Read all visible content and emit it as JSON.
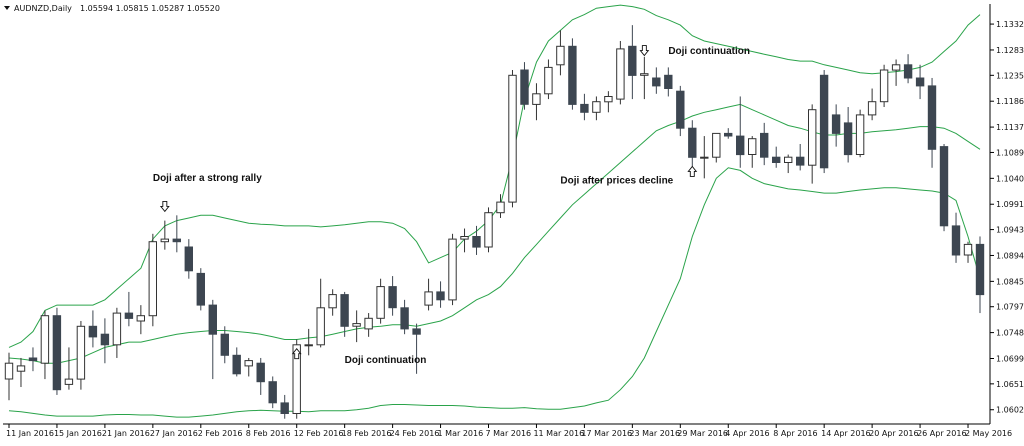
{
  "header": {
    "symbol": "AUDNZD,Daily",
    "ohlc": "1.05594 1.05815 1.05287 1.05520"
  },
  "colors": {
    "bear": "#3d4651",
    "bull_fill": "#ffffff",
    "bull_stroke": "#333333",
    "band": "#2aa34a",
    "axis": "#000000"
  },
  "annotations": [
    {
      "text": "Doji after a strong rally",
      "x": "2016-01-27",
      "y": 1.1035,
      "arrow": "down",
      "arrow_x": "2016-01-28",
      "arrow_y": 1.0985
    },
    {
      "text": "Doji continuation",
      "x": "2016-02-18",
      "y": 1.069,
      "arrow": "up",
      "arrow_x": "2016-02-12",
      "arrow_y": 1.071
    },
    {
      "text": "Doji continuation",
      "x": "2016-03-28",
      "y": 1.1275,
      "arrow": "down",
      "arrow_x": "2016-03-24",
      "arrow_y": 1.128
    },
    {
      "text": "Doji after prices decline",
      "x": "2016-03-15",
      "y": 1.103,
      "arrow": "up",
      "arrow_x": "2016-03-30",
      "arrow_y": 1.1055
    }
  ],
  "chart_data": {
    "type": "candlestick",
    "title": "AUDNZD,Daily",
    "y_ticks": [
      1.1332,
      1.1283,
      1.1235,
      1.1186,
      1.1137,
      1.1089,
      1.104,
      1.0991,
      1.0943,
      1.0894,
      1.0845,
      1.0797,
      1.0748,
      1.0699,
      1.0651,
      1.0602
    ],
    "ylim": [
      1.0575,
      1.137
    ],
    "x_tick_labels": [
      "11 Jan 2016",
      "15 Jan 2016",
      "21 Jan 2016",
      "27 Jan 2016",
      "2 Feb 2016",
      "8 Feb 2016",
      "12 Feb 2016",
      "18 Feb 2016",
      "24 Feb 2016",
      "1 Mar 2016",
      "7 Mar 2016",
      "11 Mar 2016",
      "17 Mar 2016",
      "23 Mar 2016",
      "29 Mar 2016",
      "4 Apr 2016",
      "8 Apr 2016",
      "14 Apr 2016",
      "20 Apr 2016",
      "26 Apr 2016",
      "2 May 2016"
    ],
    "x_tick_dates": [
      "2016-01-11",
      "2016-01-15",
      "2016-01-21",
      "2016-01-27",
      "2016-02-02",
      "2016-02-08",
      "2016-02-12",
      "2016-02-18",
      "2016-02-24",
      "2016-03-01",
      "2016-03-07",
      "2016-03-11",
      "2016-03-17",
      "2016-03-23",
      "2016-03-29",
      "2016-04-04",
      "2016-04-08",
      "2016-04-14",
      "2016-04-20",
      "2016-04-26",
      "2016-05-02"
    ],
    "candles": [
      {
        "date": "2016-01-11",
        "o": 1.066,
        "h": 1.071,
        "l": 1.062,
        "c": 1.069
      },
      {
        "date": "2016-01-12",
        "o": 1.0675,
        "h": 1.07,
        "l": 1.0645,
        "c": 1.0685
      },
      {
        "date": "2016-01-13",
        "o": 1.07,
        "h": 1.072,
        "l": 1.0675,
        "c": 1.0695
      },
      {
        "date": "2016-01-14",
        "o": 1.069,
        "h": 1.079,
        "l": 1.066,
        "c": 1.078
      },
      {
        "date": "2016-01-15",
        "o": 1.078,
        "h": 1.0795,
        "l": 1.063,
        "c": 1.064
      },
      {
        "date": "2016-01-18",
        "o": 1.065,
        "h": 1.072,
        "l": 1.064,
        "c": 1.066
      },
      {
        "date": "2016-01-19",
        "o": 1.066,
        "h": 1.077,
        "l": 1.064,
        "c": 1.076
      },
      {
        "date": "2016-01-20",
        "o": 1.076,
        "h": 1.079,
        "l": 1.072,
        "c": 1.074
      },
      {
        "date": "2016-01-21",
        "o": 1.0745,
        "h": 1.0775,
        "l": 1.069,
        "c": 1.0725
      },
      {
        "date": "2016-01-22",
        "o": 1.0725,
        "h": 1.0795,
        "l": 1.07,
        "c": 1.0785
      },
      {
        "date": "2016-01-25",
        "o": 1.0785,
        "h": 1.0825,
        "l": 1.076,
        "c": 1.0775
      },
      {
        "date": "2016-01-26",
        "o": 1.077,
        "h": 1.08,
        "l": 1.0745,
        "c": 1.078
      },
      {
        "date": "2016-01-27",
        "o": 1.078,
        "h": 1.0935,
        "l": 1.076,
        "c": 1.092
      },
      {
        "date": "2016-01-28",
        "o": 1.092,
        "h": 1.096,
        "l": 1.0905,
        "c": 1.0925
      },
      {
        "date": "2016-01-29",
        "o": 1.0925,
        "h": 1.097,
        "l": 1.09,
        "c": 1.092
      },
      {
        "date": "2016-02-01",
        "o": 1.091,
        "h": 1.0925,
        "l": 1.085,
        "c": 1.0865
      },
      {
        "date": "2016-02-02",
        "o": 1.086,
        "h": 1.087,
        "l": 1.079,
        "c": 1.08
      },
      {
        "date": "2016-02-03",
        "o": 1.08,
        "h": 1.081,
        "l": 1.066,
        "c": 1.0745
      },
      {
        "date": "2016-02-04",
        "o": 1.0745,
        "h": 1.076,
        "l": 1.069,
        "c": 1.0705
      },
      {
        "date": "2016-02-05",
        "o": 1.0705,
        "h": 1.072,
        "l": 1.0665,
        "c": 1.067
      },
      {
        "date": "2016-02-08",
        "o": 1.0685,
        "h": 1.07,
        "l": 1.0665,
        "c": 1.0695
      },
      {
        "date": "2016-02-09",
        "o": 1.069,
        "h": 1.07,
        "l": 1.063,
        "c": 1.0655
      },
      {
        "date": "2016-02-10",
        "o": 1.0655,
        "h": 1.0665,
        "l": 1.0605,
        "c": 1.0615
      },
      {
        "date": "2016-02-11",
        "o": 1.0615,
        "h": 1.063,
        "l": 1.0585,
        "c": 1.0595
      },
      {
        "date": "2016-02-12",
        "o": 1.0595,
        "h": 1.0735,
        "l": 1.0585,
        "c": 1.0725
      },
      {
        "date": "2016-02-15",
        "o": 1.0725,
        "h": 1.0755,
        "l": 1.0705,
        "c": 1.0725
      },
      {
        "date": "2016-02-16",
        "o": 1.0725,
        "h": 1.085,
        "l": 1.072,
        "c": 1.0795
      },
      {
        "date": "2016-02-17",
        "o": 1.0795,
        "h": 1.083,
        "l": 1.078,
        "c": 1.082
      },
      {
        "date": "2016-02-18",
        "o": 1.082,
        "h": 1.0825,
        "l": 1.074,
        "c": 1.076
      },
      {
        "date": "2016-02-19",
        "o": 1.076,
        "h": 1.079,
        "l": 1.073,
        "c": 1.0765
      },
      {
        "date": "2016-02-22",
        "o": 1.0755,
        "h": 1.0785,
        "l": 1.074,
        "c": 1.0775
      },
      {
        "date": "2016-02-23",
        "o": 1.0775,
        "h": 1.085,
        "l": 1.0765,
        "c": 1.0835
      },
      {
        "date": "2016-02-24",
        "o": 1.0835,
        "h": 1.0855,
        "l": 1.078,
        "c": 1.0795
      },
      {
        "date": "2016-02-25",
        "o": 1.0795,
        "h": 1.081,
        "l": 1.0745,
        "c": 1.0755
      },
      {
        "date": "2016-02-26",
        "o": 1.0755,
        "h": 1.0765,
        "l": 1.067,
        "c": 1.0745
      },
      {
        "date": "2016-02-29",
        "o": 1.08,
        "h": 1.085,
        "l": 1.079,
        "c": 1.0825
      },
      {
        "date": "2016-03-01",
        "o": 1.0825,
        "h": 1.0845,
        "l": 1.0795,
        "c": 1.081
      },
      {
        "date": "2016-03-02",
        "o": 1.081,
        "h": 1.0935,
        "l": 1.08,
        "c": 1.0925
      },
      {
        "date": "2016-03-03",
        "o": 1.0925,
        "h": 1.0945,
        "l": 1.09,
        "c": 1.093
      },
      {
        "date": "2016-03-04",
        "o": 1.093,
        "h": 1.095,
        "l": 1.0895,
        "c": 1.091
      },
      {
        "date": "2016-03-07",
        "o": 1.091,
        "h": 1.0985,
        "l": 1.09,
        "c": 1.0975
      },
      {
        "date": "2016-03-08",
        "o": 1.0975,
        "h": 1.101,
        "l": 1.0965,
        "c": 1.0995
      },
      {
        "date": "2016-03-09",
        "o": 1.0995,
        "h": 1.1245,
        "l": 1.0985,
        "c": 1.1235
      },
      {
        "date": "2016-03-10",
        "o": 1.1245,
        "h": 1.126,
        "l": 1.117,
        "c": 1.118
      },
      {
        "date": "2016-03-11",
        "o": 1.118,
        "h": 1.122,
        "l": 1.115,
        "c": 1.12
      },
      {
        "date": "2016-03-14",
        "o": 1.12,
        "h": 1.1265,
        "l": 1.119,
        "c": 1.125
      },
      {
        "date": "2016-03-15",
        "o": 1.1255,
        "h": 1.132,
        "l": 1.1235,
        "c": 1.129
      },
      {
        "date": "2016-03-16",
        "o": 1.129,
        "h": 1.1305,
        "l": 1.117,
        "c": 1.118
      },
      {
        "date": "2016-03-17",
        "o": 1.118,
        "h": 1.12,
        "l": 1.115,
        "c": 1.1165
      },
      {
        "date": "2016-03-18",
        "o": 1.1165,
        "h": 1.1195,
        "l": 1.115,
        "c": 1.1185
      },
      {
        "date": "2016-03-21",
        "o": 1.1185,
        "h": 1.1205,
        "l": 1.1165,
        "c": 1.1195
      },
      {
        "date": "2016-03-22",
        "o": 1.119,
        "h": 1.13,
        "l": 1.118,
        "c": 1.1285
      },
      {
        "date": "2016-03-23",
        "o": 1.129,
        "h": 1.133,
        "l": 1.119,
        "c": 1.1235
      },
      {
        "date": "2016-03-24",
        "o": 1.1235,
        "h": 1.127,
        "l": 1.119,
        "c": 1.1238
      },
      {
        "date": "2016-03-25",
        "o": 1.123,
        "h": 1.125,
        "l": 1.12,
        "c": 1.1215
      },
      {
        "date": "2016-03-28",
        "o": 1.1235,
        "h": 1.125,
        "l": 1.1195,
        "c": 1.121
      },
      {
        "date": "2016-03-29",
        "o": 1.1205,
        "h": 1.1215,
        "l": 1.112,
        "c": 1.1135
      },
      {
        "date": "2016-03-30",
        "o": 1.1135,
        "h": 1.115,
        "l": 1.105,
        "c": 1.108
      },
      {
        "date": "2016-03-31",
        "o": 1.108,
        "h": 1.112,
        "l": 1.104,
        "c": 1.108
      },
      {
        "date": "2016-04-01",
        "o": 1.108,
        "h": 1.1125,
        "l": 1.107,
        "c": 1.1125
      },
      {
        "date": "2016-04-04",
        "o": 1.1125,
        "h": 1.1135,
        "l": 1.1115,
        "c": 1.112
      },
      {
        "date": "2016-04-05",
        "o": 1.112,
        "h": 1.1195,
        "l": 1.106,
        "c": 1.1085
      },
      {
        "date": "2016-04-06",
        "o": 1.1085,
        "h": 1.112,
        "l": 1.106,
        "c": 1.1115
      },
      {
        "date": "2016-04-07",
        "o": 1.1125,
        "h": 1.1145,
        "l": 1.1065,
        "c": 1.108
      },
      {
        "date": "2016-04-08",
        "o": 1.108,
        "h": 1.11,
        "l": 1.106,
        "c": 1.107
      },
      {
        "date": "2016-04-11",
        "o": 1.107,
        "h": 1.1085,
        "l": 1.105,
        "c": 1.108
      },
      {
        "date": "2016-04-12",
        "o": 1.108,
        "h": 1.1105,
        "l": 1.1055,
        "c": 1.1065
      },
      {
        "date": "2016-04-13",
        "o": 1.1065,
        "h": 1.118,
        "l": 1.103,
        "c": 1.117
      },
      {
        "date": "2016-04-14",
        "o": 1.1235,
        "h": 1.1245,
        "l": 1.105,
        "c": 1.106
      },
      {
        "date": "2016-04-15",
        "o": 1.116,
        "h": 1.118,
        "l": 1.11,
        "c": 1.1125
      },
      {
        "date": "2016-04-18",
        "o": 1.1145,
        "h": 1.1175,
        "l": 1.107,
        "c": 1.1085
      },
      {
        "date": "2016-04-19",
        "o": 1.1085,
        "h": 1.117,
        "l": 1.108,
        "c": 1.116
      },
      {
        "date": "2016-04-20",
        "o": 1.116,
        "h": 1.121,
        "l": 1.115,
        "c": 1.1185
      },
      {
        "date": "2016-04-21",
        "o": 1.1185,
        "h": 1.1255,
        "l": 1.1175,
        "c": 1.1245
      },
      {
        "date": "2016-04-22",
        "o": 1.1245,
        "h": 1.1265,
        "l": 1.1215,
        "c": 1.1255
      },
      {
        "date": "2016-04-25",
        "o": 1.1255,
        "h": 1.1275,
        "l": 1.122,
        "c": 1.123
      },
      {
        "date": "2016-04-26",
        "o": 1.123,
        "h": 1.1255,
        "l": 1.119,
        "c": 1.1215
      },
      {
        "date": "2016-04-27",
        "o": 1.1215,
        "h": 1.123,
        "l": 1.106,
        "c": 1.1095
      },
      {
        "date": "2016-04-28",
        "o": 1.11,
        "h": 1.1105,
        "l": 1.094,
        "c": 1.095
      },
      {
        "date": "2016-04-29",
        "o": 1.095,
        "h": 1.0975,
        "l": 1.088,
        "c": 1.0895
      },
      {
        "date": "2016-05-02",
        "o": 1.0895,
        "h": 1.092,
        "l": 1.088,
        "c": 1.0915
      },
      {
        "date": "2016-05-03",
        "o": 1.0915,
        "h": 1.093,
        "l": 1.0785,
        "c": 1.082
      }
    ],
    "bollinger": {
      "upper": [
        1.072,
        1.073,
        1.075,
        1.079,
        1.08,
        1.08,
        1.08,
        1.08,
        1.081,
        1.083,
        1.085,
        1.087,
        1.0925,
        1.095,
        1.096,
        1.0965,
        1.097,
        1.097,
        1.0965,
        1.096,
        1.0955,
        1.0953,
        1.0952,
        1.095,
        1.095,
        1.095,
        1.0948,
        1.095,
        1.0952,
        1.0955,
        1.0958,
        1.0958,
        1.0955,
        1.0945,
        1.092,
        1.088,
        1.089,
        1.09,
        1.0925,
        1.094,
        1.096,
        1.099,
        1.108,
        1.119,
        1.126,
        1.13,
        1.132,
        1.134,
        1.135,
        1.1362,
        1.1365,
        1.1368,
        1.1365,
        1.136,
        1.1348,
        1.134,
        1.133,
        1.131,
        1.13,
        1.1295,
        1.129,
        1.1285,
        1.128,
        1.1275,
        1.127,
        1.1265,
        1.1262,
        1.1262,
        1.1255,
        1.125,
        1.1245,
        1.124,
        1.1238,
        1.124,
        1.1242,
        1.1245,
        1.125,
        1.126,
        1.128,
        1.13,
        1.133,
        1.135
      ],
      "middle": [
        1.07,
        1.0698,
        1.0695,
        1.069,
        1.069,
        1.0695,
        1.07,
        1.071,
        1.072,
        1.0725,
        1.073,
        1.073,
        1.0735,
        1.074,
        1.0745,
        1.0748,
        1.075,
        1.0752,
        1.0752,
        1.075,
        1.0748,
        1.0745,
        1.074,
        1.0735,
        1.0735,
        1.0738,
        1.074,
        1.0745,
        1.075,
        1.0755,
        1.0758,
        1.076,
        1.0763,
        1.0763,
        1.076,
        1.0765,
        1.077,
        1.078,
        1.0795,
        1.081,
        1.082,
        1.0835,
        1.086,
        1.089,
        1.0915,
        1.094,
        1.0965,
        1.099,
        1.101,
        1.103,
        1.105,
        1.107,
        1.109,
        1.111,
        1.113,
        1.114,
        1.1148,
        1.1158,
        1.1165,
        1.117,
        1.1175,
        1.118,
        1.117,
        1.116,
        1.115,
        1.114,
        1.1135,
        1.1128,
        1.1122,
        1.1122,
        1.1125,
        1.1125,
        1.1128,
        1.113,
        1.1132,
        1.1135,
        1.1138,
        1.1138,
        1.1135,
        1.1125,
        1.111,
        1.1095
      ],
      "lower": [
        1.06,
        1.0598,
        1.0595,
        1.0592,
        1.059,
        1.059,
        1.059,
        1.059,
        1.0592,
        1.0593,
        1.0593,
        1.0592,
        1.0592,
        1.059,
        1.0588,
        1.0588,
        1.059,
        1.0592,
        1.0595,
        1.0598,
        1.06,
        1.0601,
        1.06,
        1.0599,
        1.0599,
        1.0598,
        1.06,
        1.06,
        1.06,
        1.0602,
        1.0605,
        1.061,
        1.0612,
        1.0612,
        1.0611,
        1.061,
        1.061,
        1.061,
        1.0609,
        1.0607,
        1.0606,
        1.0605,
        1.0605,
        1.0606,
        1.0604,
        1.0603,
        1.0603,
        1.0606,
        1.0609,
        1.0615,
        1.062,
        1.064,
        1.0665,
        1.07,
        1.075,
        1.08,
        1.085,
        1.093,
        1.099,
        1.104,
        1.106,
        1.1055,
        1.104,
        1.103,
        1.1025,
        1.102,
        1.1018,
        1.1015,
        1.1012,
        1.1012,
        1.1015,
        1.1018,
        1.102,
        1.1022,
        1.1022,
        1.102,
        1.1018,
        1.1016,
        1.1012,
        1.0998,
        1.093,
        1.085
      ]
    },
    "grid": false,
    "legend": "none"
  }
}
